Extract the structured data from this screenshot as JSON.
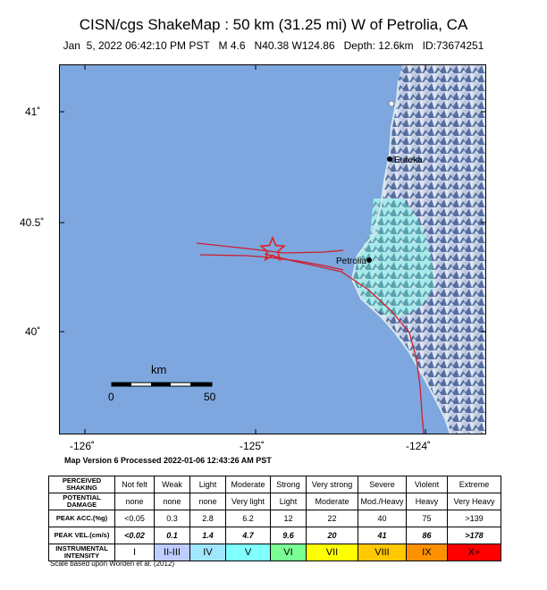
{
  "header": {
    "title": "CISN/cgs ShakeMap : 50 km (31.25 mi) W of Petrolia, CA",
    "subtitle": "Jan  5, 2022 06:42:10 PM PST   M 4.6   N40.38 W124.86   Depth: 12.6km   ID:73674251"
  },
  "map": {
    "lat_labels": [
      "41˚",
      "40.5˚",
      "40˚"
    ],
    "lon_labels": [
      "-126˚",
      "-125˚",
      "-124˚"
    ],
    "places": [
      {
        "name": "Eureka"
      },
      {
        "name": "Petrolia"
      }
    ],
    "scale_bar": {
      "unit": "km",
      "start": "0",
      "end": "50"
    },
    "epicenter_icon": "star-icon",
    "colors": {
      "ocean": "#7da7de",
      "fault": "#cc1f2e",
      "epicenter": "#e02020",
      "intensity_light": "#a6ecec"
    }
  },
  "version_text": "Map Version 6 Processed 2022-01-06 12:43:26 AM PST",
  "legend": {
    "shaking": {
      "label": "PERCEIVED SHAKING",
      "values": [
        "Not felt",
        "Weak",
        "Light",
        "Moderate",
        "Strong",
        "Very strong",
        "Severe",
        "Violent",
        "Extreme"
      ]
    },
    "damage": {
      "label": "POTENTIAL DAMAGE",
      "values": [
        "none",
        "none",
        "none",
        "Very light",
        "Light",
        "Moderate",
        "Mod./Heavy",
        "Heavy",
        "Very Heavy"
      ]
    },
    "acc": {
      "label": "PEAK ACC.(%g)",
      "values": [
        "<0.05",
        "0.3",
        "2.8",
        "6.2",
        "12",
        "22",
        "40",
        "75",
        ">139"
      ]
    },
    "vel": {
      "label": "PEAK VEL.(cm/s)",
      "values": [
        "<0.02",
        "0.1",
        "1.4",
        "4.7",
        "9.6",
        "20",
        "41",
        "86",
        ">178"
      ]
    },
    "intensity": {
      "label": "INSTRUMENTAL INTENSITY",
      "values": [
        "I",
        "II-III",
        "IV",
        "V",
        "VI",
        "VII",
        "VIII",
        "IX",
        "X+"
      ]
    },
    "intensity_colors": [
      "#ffffff",
      "#bfccff",
      "#a0e6ff",
      "#80ffff",
      "#7aff93",
      "#ffff00",
      "#ffc800",
      "#ff9100",
      "#ff0000"
    ]
  },
  "scale_note": "Scale based upon Worden et al. (2012)"
}
